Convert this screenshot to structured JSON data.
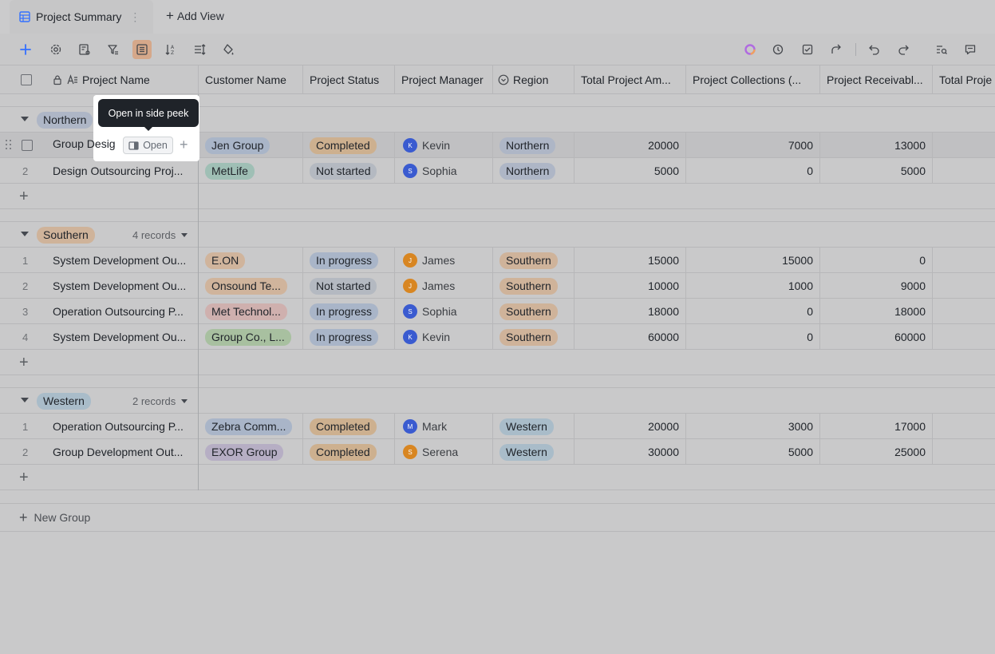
{
  "tabs": {
    "active_label": "Project Summary",
    "add_view_label": "Add View"
  },
  "toolbar": {
    "left_icons": [
      "plus-icon",
      "settings-icon",
      "field-settings-icon",
      "filter-icon",
      "group-icon",
      "sort-icon",
      "row-height-icon",
      "fill-color-icon"
    ],
    "right_icons": [
      "ai-icon",
      "history-icon",
      "task-icon",
      "share-icon",
      "undo-icon",
      "redo-icon",
      "search-icon",
      "comment-icon"
    ]
  },
  "columns": [
    {
      "label": "Project Name"
    },
    {
      "label": "Customer Name"
    },
    {
      "label": "Project Status"
    },
    {
      "label": "Project Manager"
    },
    {
      "label": "Region"
    },
    {
      "label": "Total Project Am..."
    },
    {
      "label": "Project Collections (..."
    },
    {
      "label": "Project Receivabl..."
    },
    {
      "label": "Total Proje"
    }
  ],
  "tooltip": {
    "text": "Open in side peek",
    "open_label": "Open"
  },
  "groups": [
    {
      "name": "Northern",
      "count": "",
      "rows": [
        {
          "idx": "",
          "name": "Group Desig",
          "customer": "Jen Group",
          "status": "Completed",
          "manager": "Kevin",
          "manager_initial": "K",
          "region": "Northern",
          "total": "20000",
          "collections": "7000",
          "receivable": "13000"
        },
        {
          "idx": "2",
          "name": "Design Outsourcing Proj...",
          "customer": "MetLife",
          "status": "Not started",
          "manager": "Sophia",
          "manager_initial": "S",
          "region": "Northern",
          "total": "5000",
          "collections": "0",
          "receivable": "5000"
        }
      ]
    },
    {
      "name": "Southern",
      "count": "4 records",
      "rows": [
        {
          "idx": "1",
          "name": "System Development Ou...",
          "customer": "E.ON",
          "status": "In progress",
          "manager": "James",
          "manager_initial": "J",
          "region": "Southern",
          "total": "15000",
          "collections": "15000",
          "receivable": "0"
        },
        {
          "idx": "2",
          "name": "System Development Ou...",
          "customer": "Onsound Te...",
          "status": "Not started",
          "manager": "James",
          "manager_initial": "J",
          "region": "Southern",
          "total": "10000",
          "collections": "1000",
          "receivable": "9000"
        },
        {
          "idx": "3",
          "name": "Operation Outsourcing P...",
          "customer": "Met Technol...",
          "status": "In progress",
          "manager": "Sophia",
          "manager_initial": "S",
          "region": "Southern",
          "total": "18000",
          "collections": "0",
          "receivable": "18000"
        },
        {
          "idx": "4",
          "name": "System Development Ou...",
          "customer": "Group Co., L...",
          "status": "In progress",
          "manager": "Kevin",
          "manager_initial": "K",
          "region": "Southern",
          "total": "60000",
          "collections": "0",
          "receivable": "60000"
        }
      ]
    },
    {
      "name": "Western",
      "count": "2 records",
      "rows": [
        {
          "idx": "1",
          "name": "Operation Outsourcing P...",
          "customer": "Zebra Comm...",
          "status": "Completed",
          "manager": "Mark",
          "manager_initial": "M",
          "region": "Western",
          "total": "20000",
          "collections": "3000",
          "receivable": "17000"
        },
        {
          "idx": "2",
          "name": "Group Development Out...",
          "customer": "EXOR Group",
          "status": "Completed",
          "manager": "Serena",
          "manager_initial": "S",
          "region": "Western",
          "total": "30000",
          "collections": "5000",
          "receivable": "25000"
        }
      ]
    }
  ],
  "new_group_label": "New Group",
  "colors": {
    "accent": "#3370ff",
    "active_tool": "#d5a88a",
    "tooltip_bg": "#1f2329"
  }
}
